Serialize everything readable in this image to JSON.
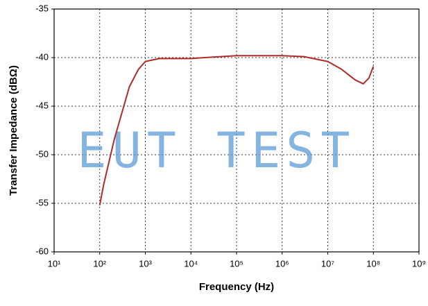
{
  "chart_data": {
    "type": "line",
    "x_label": "Frequency (Hz)",
    "y_label": "Transfer Impedance (dBΩ)",
    "watermark": "EUT TEST",
    "x_scale": "log",
    "xlim": [
      10,
      1000000000
    ],
    "xticks": [
      {
        "value": 10,
        "label": "10¹"
      },
      {
        "value": 100,
        "label": "10²"
      },
      {
        "value": 1000,
        "label": "10³"
      },
      {
        "value": 10000,
        "label": "10⁴"
      },
      {
        "value": 100000,
        "label": "10⁵"
      },
      {
        "value": 1000000,
        "label": "10⁶"
      },
      {
        "value": 10000000,
        "label": "10⁷"
      },
      {
        "value": 100000000,
        "label": "10⁸"
      },
      {
        "value": 1000000000,
        "label": "10⁹"
      }
    ],
    "ylim": [
      -60,
      -35
    ],
    "yticks": [
      -60,
      -55,
      -50,
      -45,
      -40,
      -35
    ],
    "grid": true,
    "series": [
      {
        "color": "#b02a2a",
        "x": [
          100,
          123,
          209,
          447,
          708,
          1000,
          2040,
          10000,
          20000,
          100000,
          1000000,
          3000000,
          10000000,
          20000000,
          40000000,
          60000000,
          80000000,
          100000000
        ],
        "values": [
          -55.2,
          -53,
          -48.4,
          -43,
          -41.2,
          -40.4,
          -40.1,
          -40.1,
          -40,
          -39.8,
          -39.8,
          -39.9,
          -40.4,
          -41.2,
          -42.3,
          -42.7,
          -42.1,
          -40.9
        ]
      }
    ]
  }
}
